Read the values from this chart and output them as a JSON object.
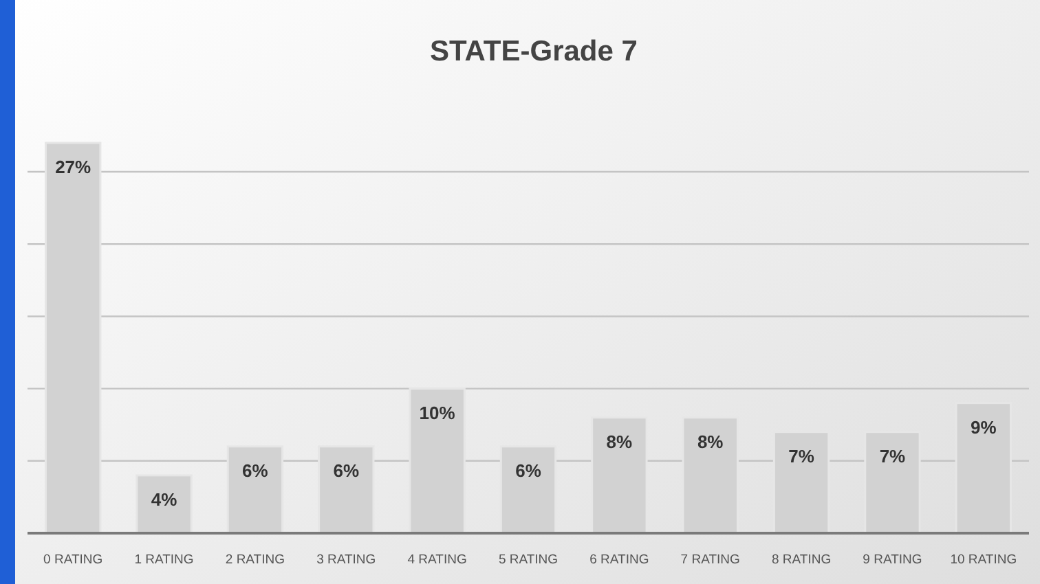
{
  "chart_data": {
    "type": "bar",
    "title": "STATE-Grade 7",
    "categories": [
      "0 RATING",
      "1 RATING",
      "2 RATING",
      "3 RATING",
      "4 RATING",
      "5 RATING",
      "6 RATING",
      "7 RATING",
      "8 RATING",
      "9 RATING",
      "10 RATING"
    ],
    "values": [
      27,
      4,
      6,
      6,
      10,
      6,
      8,
      8,
      7,
      7,
      9
    ],
    "value_labels": [
      "27%",
      "4%",
      "6%",
      "6%",
      "10%",
      "6%",
      "8%",
      "8%",
      "7%",
      "7%",
      "9%"
    ],
    "color": "#d2d2d2",
    "yticks": [
      {
        "value": 0,
        "label": null
      },
      {
        "value": 5,
        "label": null
      },
      {
        "value": 10,
        "label": null
      },
      {
        "value": 15,
        "label": null
      },
      {
        "value": 20,
        "label": null
      },
      {
        "value": 25,
        "label": null
      }
    ],
    "tick_labels": "x",
    "grid": "y"
  }
}
